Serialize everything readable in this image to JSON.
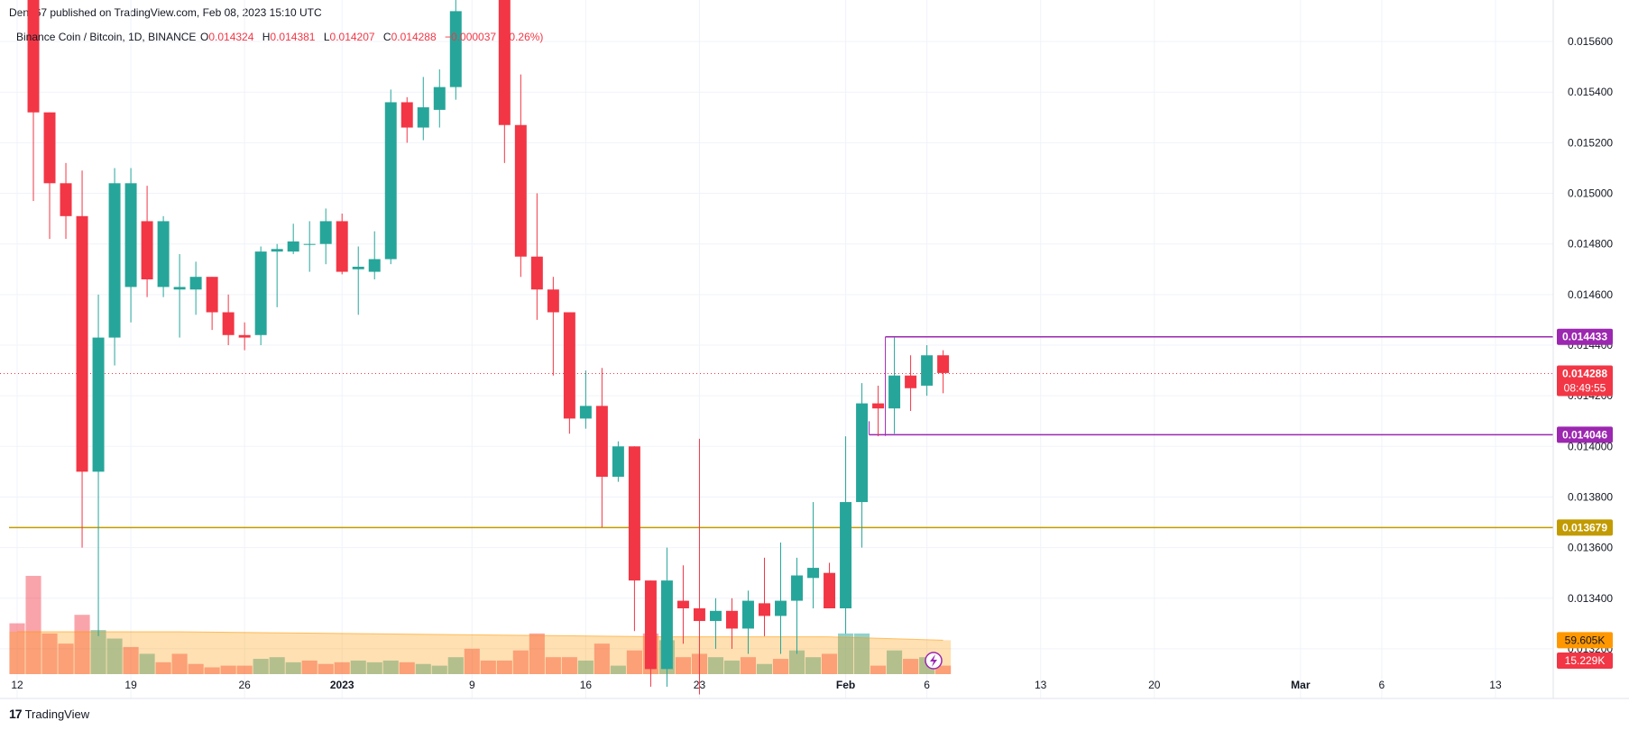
{
  "header": {
    "publish_text": "Den767 published on TradingView.com, Feb 08, 2023 15:10 UTC"
  },
  "legend": {
    "symbol": "Binance Coin / Bitcoin, 1D, BINANCE",
    "o_label": "O",
    "o_value": "0.014324",
    "h_label": "H",
    "h_value": "0.014381",
    "l_label": "L",
    "l_value": "0.014207",
    "c_value": "0.014288",
    "change": "−0.000037 (−0.26%)"
  },
  "footer": {
    "brand": "TradingView",
    "logo_glyph": "17"
  },
  "colors": {
    "up": "#26a69a",
    "down": "#f23645",
    "level_purple": "#9c27b0",
    "level_orange": "#c29b00",
    "volume_ma": "#ff9800",
    "last_price_line": "#f23645"
  },
  "chart_data": {
    "type": "candlestick",
    "title": "Binance Coin / Bitcoin, 1D, BINANCE",
    "ylim": [
      0.0131,
      0.0157
    ],
    "y_ticks": [
      "0.015600",
      "0.015400",
      "0.015200",
      "0.015000",
      "0.014800",
      "0.014600",
      "0.014400",
      "0.014200",
      "0.014000",
      "0.013800",
      "0.013600",
      "0.013400",
      "0.013200"
    ],
    "x_ticks": [
      {
        "day": 0,
        "label": "12"
      },
      {
        "day": 7,
        "label": "19"
      },
      {
        "day": 14,
        "label": "26"
      },
      {
        "day": 20,
        "label": "2023"
      },
      {
        "day": 28,
        "label": "9"
      },
      {
        "day": 35,
        "label": "16"
      },
      {
        "day": 42,
        "label": "23"
      },
      {
        "day": 51,
        "label": "Feb"
      },
      {
        "day": 56,
        "label": "6"
      },
      {
        "day": 63,
        "label": "13"
      },
      {
        "day": 70,
        "label": "20"
      },
      {
        "day": 79,
        "label": "Mar"
      },
      {
        "day": 84,
        "label": "6"
      },
      {
        "day": 91,
        "label": "13"
      }
    ],
    "x_range": [
      -0.5,
      94
    ],
    "candles": [
      {
        "d": 1,
        "o": 0.0158,
        "h": 0.0158,
        "l": 0.01497,
        "c": 0.01532
      },
      {
        "d": 2,
        "o": 0.01532,
        "h": 0.01532,
        "l": 0.01482,
        "c": 0.01504
      },
      {
        "d": 3,
        "o": 0.01504,
        "h": 0.01512,
        "l": 0.01482,
        "c": 0.01491
      },
      {
        "d": 4,
        "o": 0.01491,
        "h": 0.01509,
        "l": 0.0136,
        "c": 0.0139
      },
      {
        "d": 5,
        "o": 0.0139,
        "h": 0.0146,
        "l": 0.01325,
        "c": 0.01443
      },
      {
        "d": 6,
        "o": 0.01443,
        "h": 0.0151,
        "l": 0.01432,
        "c": 0.01504
      },
      {
        "d": 7,
        "o": 0.01463,
        "h": 0.0151,
        "l": 0.01449,
        "c": 0.01504
      },
      {
        "d": 8,
        "o": 0.01489,
        "h": 0.01503,
        "l": 0.01459,
        "c": 0.01466
      },
      {
        "d": 9,
        "o": 0.01463,
        "h": 0.01491,
        "l": 0.01459,
        "c": 0.01489
      },
      {
        "d": 10,
        "o": 0.01462,
        "h": 0.01476,
        "l": 0.01443,
        "c": 0.01463
      },
      {
        "d": 11,
        "o": 0.01462,
        "h": 0.01473,
        "l": 0.01452,
        "c": 0.01467
      },
      {
        "d": 12,
        "o": 0.01467,
        "h": 0.01467,
        "l": 0.01446,
        "c": 0.01453
      },
      {
        "d": 13,
        "o": 0.01453,
        "h": 0.0146,
        "l": 0.0144,
        "c": 0.01444
      },
      {
        "d": 14,
        "o": 0.01444,
        "h": 0.01449,
        "l": 0.01438,
        "c": 0.01443
      },
      {
        "d": 15,
        "o": 0.01444,
        "h": 0.01479,
        "l": 0.0144,
        "c": 0.01477
      },
      {
        "d": 16,
        "o": 0.01477,
        "h": 0.0148,
        "l": 0.01455,
        "c": 0.01478
      },
      {
        "d": 17,
        "o": 0.01477,
        "h": 0.01488,
        "l": 0.01476,
        "c": 0.01481
      },
      {
        "d": 18,
        "o": 0.0148,
        "h": 0.01489,
        "l": 0.01469,
        "c": 0.0148
      },
      {
        "d": 19,
        "o": 0.0148,
        "h": 0.01494,
        "l": 0.01472,
        "c": 0.01489
      },
      {
        "d": 20,
        "o": 0.01489,
        "h": 0.01492,
        "l": 0.01468,
        "c": 0.01469
      },
      {
        "d": 21,
        "o": 0.0147,
        "h": 0.01479,
        "l": 0.01452,
        "c": 0.01471
      },
      {
        "d": 22,
        "o": 0.01469,
        "h": 0.01485,
        "l": 0.01466,
        "c": 0.01474
      },
      {
        "d": 23,
        "o": 0.01474,
        "h": 0.01541,
        "l": 0.01472,
        "c": 0.01536
      },
      {
        "d": 24,
        "o": 0.01536,
        "h": 0.01538,
        "l": 0.0152,
        "c": 0.01526
      },
      {
        "d": 25,
        "o": 0.01526,
        "h": 0.01546,
        "l": 0.01521,
        "c": 0.01534
      },
      {
        "d": 26,
        "o": 0.01533,
        "h": 0.01549,
        "l": 0.01526,
        "c": 0.01542
      },
      {
        "d": 27,
        "o": 0.01542,
        "h": 0.01578,
        "l": 0.01537,
        "c": 0.01572
      },
      {
        "d": 30,
        "o": 0.0158,
        "h": 0.0158,
        "l": 0.01512,
        "c": 0.01527
      },
      {
        "d": 31,
        "o": 0.01527,
        "h": 0.01547,
        "l": 0.01467,
        "c": 0.01475
      },
      {
        "d": 32,
        "o": 0.01475,
        "h": 0.015,
        "l": 0.0145,
        "c": 0.01462
      },
      {
        "d": 33,
        "o": 0.01462,
        "h": 0.01467,
        "l": 0.01428,
        "c": 0.01453
      },
      {
        "d": 34,
        "o": 0.01453,
        "h": 0.01452,
        "l": 0.01405,
        "c": 0.01411
      },
      {
        "d": 35,
        "o": 0.01411,
        "h": 0.0143,
        "l": 0.01407,
        "c": 0.01416
      },
      {
        "d": 36,
        "o": 0.01416,
        "h": 0.01431,
        "l": 0.01368,
        "c": 0.01388
      },
      {
        "d": 37,
        "o": 0.01388,
        "h": 0.01402,
        "l": 0.01386,
        "c": 0.014
      },
      {
        "d": 38,
        "o": 0.014,
        "h": 0.014,
        "l": 0.01327,
        "c": 0.01347
      },
      {
        "d": 39,
        "o": 0.01347,
        "h": 0.01347,
        "l": 0.01305,
        "c": 0.01312
      },
      {
        "d": 40,
        "o": 0.01312,
        "h": 0.0136,
        "l": 0.01305,
        "c": 0.01347
      },
      {
        "d": 41,
        "o": 0.01339,
        "h": 0.01353,
        "l": 0.01322,
        "c": 0.01336
      },
      {
        "d": 42,
        "o": 0.01336,
        "h": 0.01403,
        "l": 0.01302,
        "c": 0.01331
      },
      {
        "d": 43,
        "o": 0.01331,
        "h": 0.0134,
        "l": 0.0132,
        "c": 0.01335
      },
      {
        "d": 44,
        "o": 0.01335,
        "h": 0.0134,
        "l": 0.0132,
        "c": 0.01328
      },
      {
        "d": 45,
        "o": 0.01328,
        "h": 0.01343,
        "l": 0.01318,
        "c": 0.01339
      },
      {
        "d": 46,
        "o": 0.01338,
        "h": 0.01356,
        "l": 0.01325,
        "c": 0.01333
      },
      {
        "d": 47,
        "o": 0.01333,
        "h": 0.01362,
        "l": 0.01318,
        "c": 0.01339
      },
      {
        "d": 48,
        "o": 0.01339,
        "h": 0.01356,
        "l": 0.01318,
        "c": 0.01349
      },
      {
        "d": 49,
        "o": 0.01348,
        "h": 0.01378,
        "l": 0.01336,
        "c": 0.01352
      },
      {
        "d": 50,
        "o": 0.0135,
        "h": 0.01354,
        "l": 0.01336,
        "c": 0.01336
      },
      {
        "d": 51,
        "o": 0.01336,
        "h": 0.01404,
        "l": 0.01326,
        "c": 0.01378
      },
      {
        "d": 52,
        "o": 0.01378,
        "h": 0.01425,
        "l": 0.0136,
        "c": 0.01417
      },
      {
        "d": 53,
        "o": 0.01417,
        "h": 0.01424,
        "l": 0.01404,
        "c": 0.01415
      },
      {
        "d": 54,
        "o": 0.01415,
        "h": 0.01443,
        "l": 0.01405,
        "c": 0.01428
      },
      {
        "d": 55,
        "o": 0.01428,
        "h": 0.01436,
        "l": 0.01414,
        "c": 0.01423
      },
      {
        "d": 56,
        "o": 0.01424,
        "h": 0.0144,
        "l": 0.0142,
        "c": 0.01436
      },
      {
        "d": 57,
        "o": 0.01436,
        "h": 0.01438,
        "l": 0.01421,
        "c": 0.01429
      }
    ],
    "volume": {
      "label": "59.605K",
      "last_label": "15.229K",
      "ymax": 100,
      "bars": [
        {
          "d": 0,
          "v": 30,
          "up": false
        },
        {
          "d": 1,
          "v": 58,
          "up": false
        },
        {
          "d": 2,
          "v": 24,
          "up": false
        },
        {
          "d": 3,
          "v": 18,
          "up": false
        },
        {
          "d": 4,
          "v": 35,
          "up": false
        },
        {
          "d": 5,
          "v": 26,
          "up": true
        },
        {
          "d": 6,
          "v": 21,
          "up": true
        },
        {
          "d": 7,
          "v": 16,
          "up": false
        },
        {
          "d": 8,
          "v": 12,
          "up": true
        },
        {
          "d": 9,
          "v": 7,
          "up": false
        },
        {
          "d": 10,
          "v": 12,
          "up": false
        },
        {
          "d": 11,
          "v": 6,
          "up": false
        },
        {
          "d": 12,
          "v": 4,
          "up": false
        },
        {
          "d": 13,
          "v": 5,
          "up": false
        },
        {
          "d": 14,
          "v": 5,
          "up": false
        },
        {
          "d": 15,
          "v": 9,
          "up": true
        },
        {
          "d": 16,
          "v": 10,
          "up": true
        },
        {
          "d": 17,
          "v": 7,
          "up": true
        },
        {
          "d": 18,
          "v": 8,
          "up": false
        },
        {
          "d": 19,
          "v": 6,
          "up": false
        },
        {
          "d": 20,
          "v": 7,
          "up": false
        },
        {
          "d": 21,
          "v": 8,
          "up": true
        },
        {
          "d": 22,
          "v": 7,
          "up": true
        },
        {
          "d": 23,
          "v": 8,
          "up": true
        },
        {
          "d": 24,
          "v": 7,
          "up": false
        },
        {
          "d": 25,
          "v": 6,
          "up": true
        },
        {
          "d": 26,
          "v": 5,
          "up": true
        },
        {
          "d": 27,
          "v": 10,
          "up": true
        },
        {
          "d": 28,
          "v": 15,
          "up": false
        },
        {
          "d": 29,
          "v": 8,
          "up": false
        },
        {
          "d": 30,
          "v": 8,
          "up": false
        },
        {
          "d": 31,
          "v": 14,
          "up": false
        },
        {
          "d": 32,
          "v": 24,
          "up": false
        },
        {
          "d": 33,
          "v": 10,
          "up": false
        },
        {
          "d": 34,
          "v": 10,
          "up": false
        },
        {
          "d": 35,
          "v": 8,
          "up": true
        },
        {
          "d": 36,
          "v": 18,
          "up": false
        },
        {
          "d": 37,
          "v": 5,
          "up": true
        },
        {
          "d": 38,
          "v": 14,
          "up": false
        },
        {
          "d": 39,
          "v": 24,
          "up": false
        },
        {
          "d": 40,
          "v": 20,
          "up": true
        },
        {
          "d": 41,
          "v": 10,
          "up": false
        },
        {
          "d": 42,
          "v": 12,
          "up": false
        },
        {
          "d": 43,
          "v": 10,
          "up": true
        },
        {
          "d": 44,
          "v": 8,
          "up": true
        },
        {
          "d": 45,
          "v": 10,
          "up": false
        },
        {
          "d": 46,
          "v": 6,
          "up": true
        },
        {
          "d": 47,
          "v": 9,
          "up": false
        },
        {
          "d": 48,
          "v": 14,
          "up": true
        },
        {
          "d": 49,
          "v": 10,
          "up": true
        },
        {
          "d": 50,
          "v": 12,
          "up": false
        },
        {
          "d": 51,
          "v": 24,
          "up": true
        },
        {
          "d": 52,
          "v": 24,
          "up": true
        },
        {
          "d": 53,
          "v": 5,
          "up": false
        },
        {
          "d": 54,
          "v": 14,
          "up": true
        },
        {
          "d": 55,
          "v": 9,
          "up": false
        },
        {
          "d": 56,
          "v": 10,
          "up": true
        },
        {
          "d": 57,
          "v": 5,
          "up": false
        }
      ],
      "ma": [
        {
          "d": 0,
          "v": 25
        },
        {
          "d": 10,
          "v": 25
        },
        {
          "d": 20,
          "v": 24
        },
        {
          "d": 30,
          "v": 23
        },
        {
          "d": 40,
          "v": 22
        },
        {
          "d": 50,
          "v": 22
        },
        {
          "d": 57,
          "v": 20
        }
      ]
    },
    "levels": [
      {
        "name": "upper-resistance",
        "value": 0.014433,
        "label": "0.014433",
        "color": "#9c27b0",
        "from_day": 54
      },
      {
        "name": "lower-support",
        "value": 0.014046,
        "label": "0.014046",
        "color": "#9c27b0",
        "from_day": 53
      },
      {
        "name": "key-support",
        "value": 0.013679,
        "label": "0.013679",
        "color": "#c29b00",
        "from_day": -0.5
      }
    ],
    "last_price": {
      "value": 0.014288,
      "label": "0.014288",
      "countdown": "08:49:55"
    }
  }
}
